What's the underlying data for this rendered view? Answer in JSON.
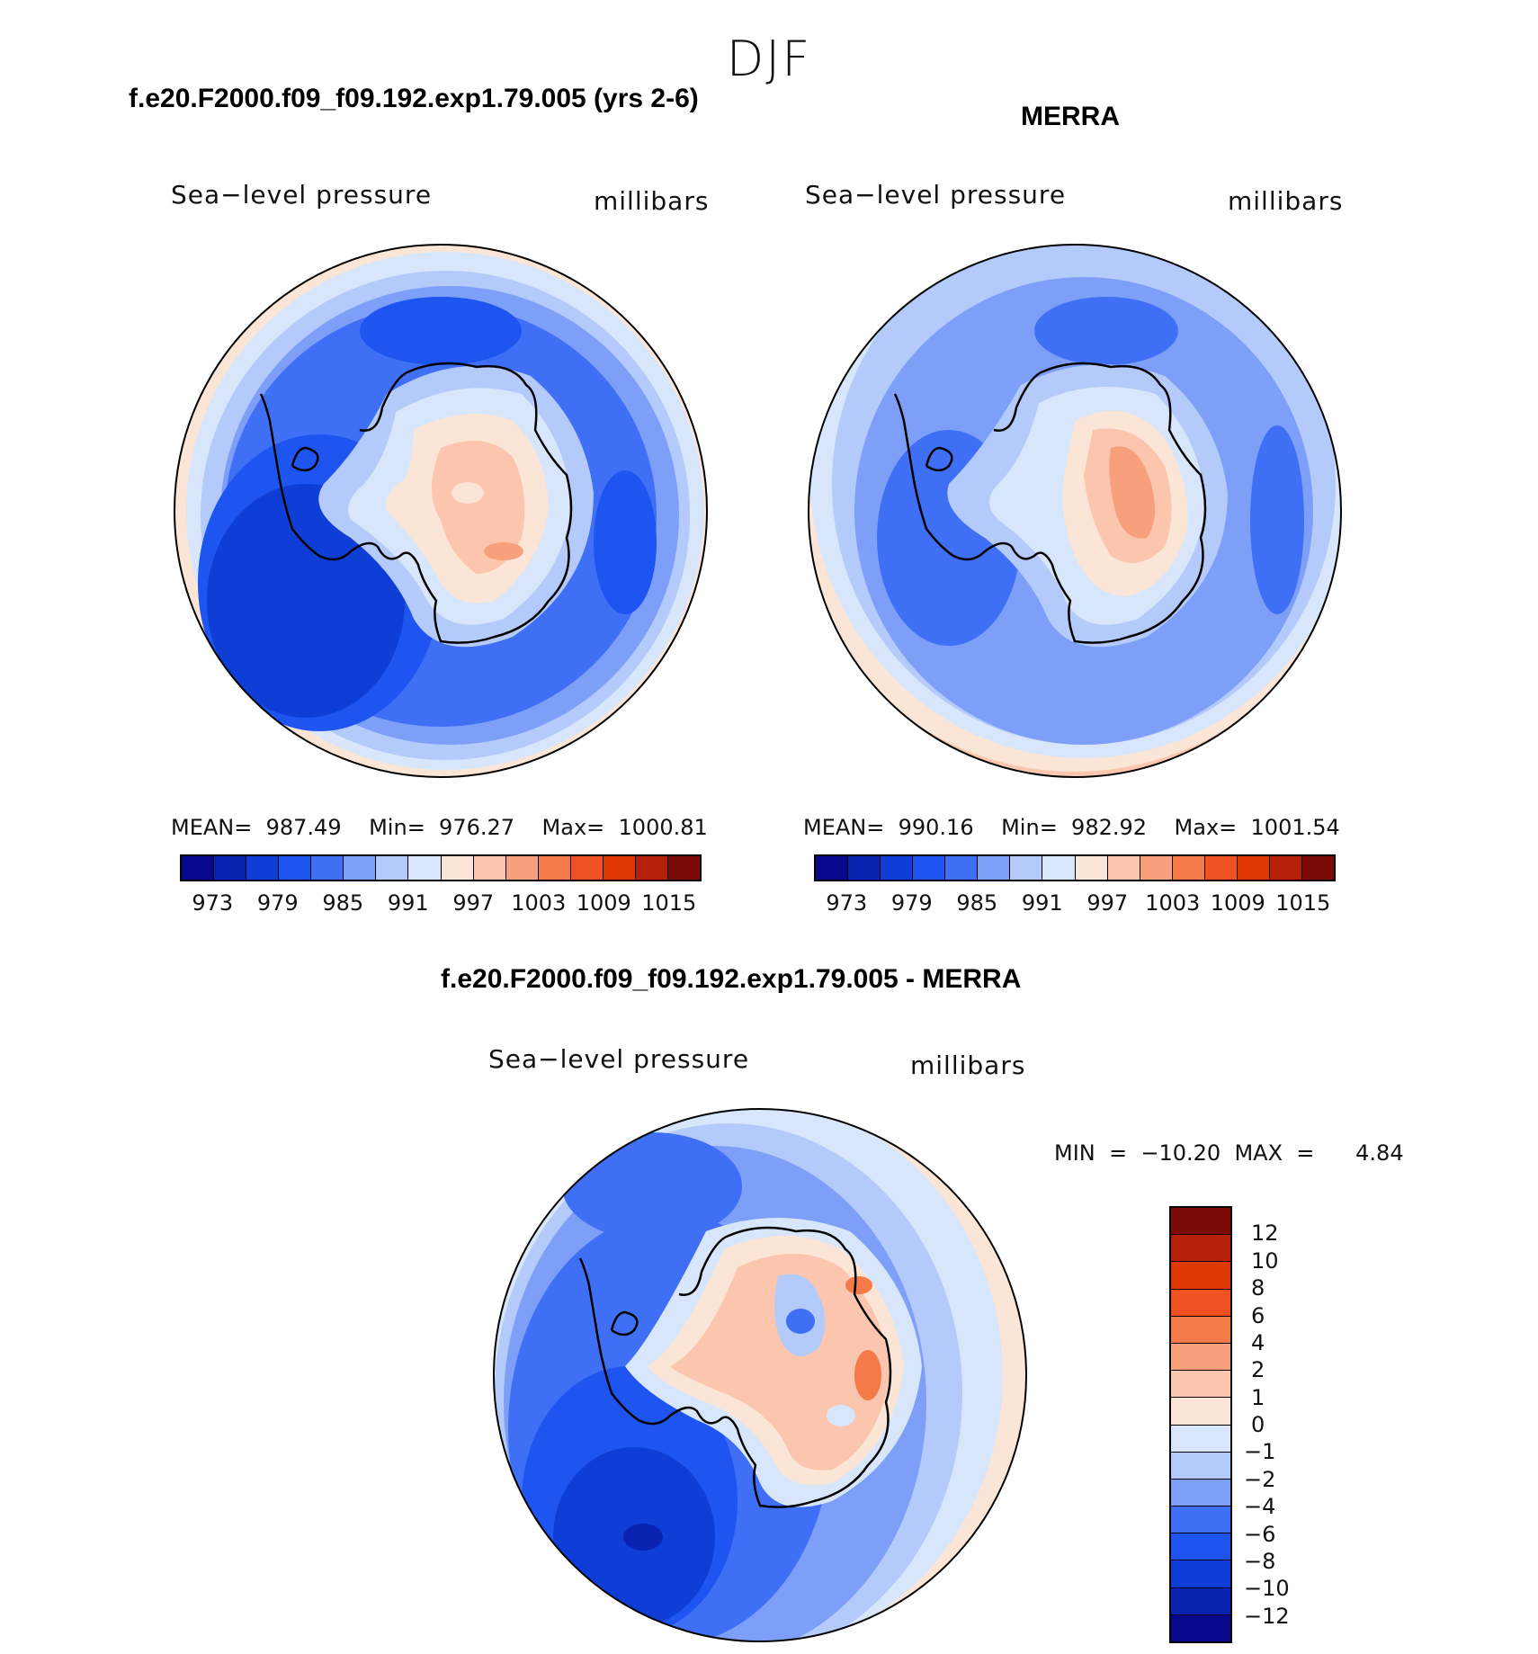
{
  "page": {
    "title": "DJF",
    "diff_title": "f.e20.F2000.f09_f09.192.exp1.79.005 - MERRA"
  },
  "panels": [
    {
      "title": "f.e20.F2000.f09_f09.192.exp1.79.005 (yrs 2-6)",
      "variable": "Sea−level pressure",
      "units": "millibars",
      "stats": "MEAN=  987.49    Min=  976.27    Max=  1000.81"
    },
    {
      "title": "MERRA",
      "variable": "Sea−level pressure",
      "units": "millibars",
      "stats": "MEAN=  990.16    Min=  982.92    Max=  1001.54"
    },
    {
      "variable": "Sea−level pressure",
      "units": "millibars",
      "stats": "MIN  =  −10.20  MAX  =      4.84"
    }
  ],
  "colorbar_abs": {
    "labels": [
      "973",
      "979",
      "985",
      "991",
      "997",
      "1003",
      "1009",
      "1015"
    ],
    "colors": [
      "#08088c",
      "#0a23b0",
      "#0f3ed6",
      "#1e55f0",
      "#3f6ff5",
      "#7d9ff8",
      "#b3cafa",
      "#d8e6fb",
      "#fbe5d6",
      "#fbc6ad",
      "#f8a07c",
      "#f47a4a",
      "#ef5220",
      "#de3806",
      "#b5200a",
      "#7c0a06"
    ]
  },
  "colorbar_diff": {
    "labels": [
      "12",
      "10",
      "8",
      "6",
      "4",
      "2",
      "1",
      "0",
      "−1",
      "−2",
      "−4",
      "−6",
      "−8",
      "−10",
      "−12"
    ],
    "colors_top_to_bottom": [
      "#7c0a06",
      "#b5200a",
      "#de3806",
      "#ef5220",
      "#f47a4a",
      "#f8a07c",
      "#fbc6ad",
      "#fbe5d6",
      "#d8e6fb",
      "#b3cafa",
      "#7d9ff8",
      "#3f6ff5",
      "#1e55f0",
      "#0f3ed6",
      "#0a23b0",
      "#08088c"
    ]
  }
}
